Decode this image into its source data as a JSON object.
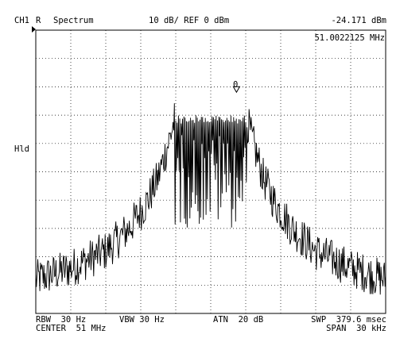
{
  "header": {
    "channel": "CH1",
    "trace_mode": "R",
    "mode": "Spectrum",
    "scale_ref": "10 dB/ REF 0 dBm",
    "marker_level": "-24.171 dBm"
  },
  "marker": {
    "frequency": "51.0022125 MHz",
    "label": "0"
  },
  "side": {
    "hold_label": "Hld"
  },
  "footer": {
    "rbw": "RBW  30 Hz",
    "vbw": "VBW 30 Hz",
    "atn": "ATN  20 dB",
    "swp": "SWP  379.6 msec",
    "center": "CENTER  51 MHz",
    "span": "SPAN  30 kHz"
  },
  "chart_data": {
    "type": "line",
    "grid": true,
    "x_divisions": 10,
    "y_divisions": 10,
    "ylim_db": [
      -100,
      0
    ],
    "xlim_khz": [
      -15,
      15
    ],
    "marker_x_khz": 2.21,
    "marker_y_db": -24.171,
    "envelope": {
      "x_khz": [
        -15,
        -12,
        -9,
        -7,
        -5.5,
        -4.5,
        -3.5,
        -3,
        3,
        3.5,
        4.5,
        5.5,
        7,
        9,
        12,
        15
      ],
      "y_db": [
        -88,
        -84,
        -78,
        -70,
        -61,
        -52,
        -38,
        -30,
        -30,
        -38,
        -52,
        -61,
        -70,
        -78,
        -84,
        -88
      ]
    }
  }
}
